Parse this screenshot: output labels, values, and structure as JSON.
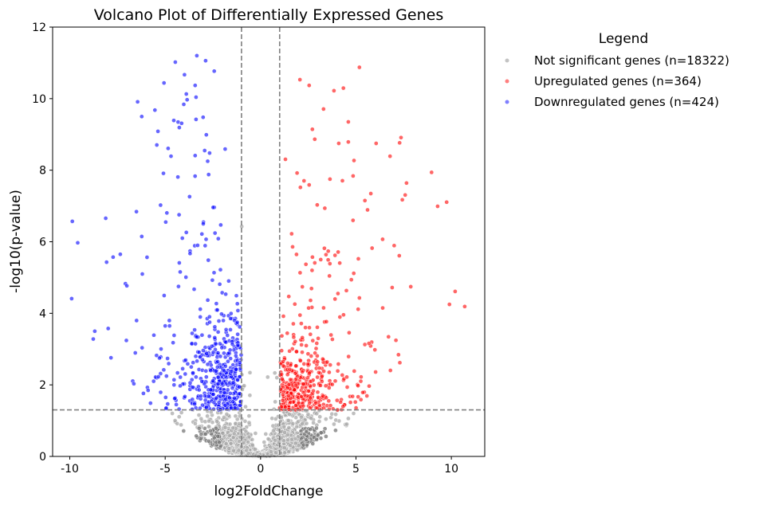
{
  "chart_data": {
    "type": "scatter",
    "title": "Volcano Plot of Differentially Expressed Genes",
    "xlabel": "log2FoldChange",
    "ylabel": "-log10(p-value)",
    "xlim": [
      -10.9,
      11.75
    ],
    "ylim": [
      0,
      12
    ],
    "x_ticks": [
      -10,
      -5,
      0,
      5,
      10
    ],
    "y_ticks": [
      0,
      2,
      4,
      6,
      8,
      10,
      12
    ],
    "grid": false,
    "thresholds": {
      "log2fc": [
        -1,
        1
      ],
      "neg_log10_p": 1.3
    },
    "legend": {
      "title": "Legend",
      "placement": "outside-top-right",
      "entries": [
        {
          "label": "Not significant genes (n=18322)",
          "color": "#a9a9a9"
        },
        {
          "label": "Upregulated genes (n=364)",
          "color": "#ff0000"
        },
        {
          "label": "Downregulated genes (n=424)",
          "color": "#0000ff"
        }
      ]
    },
    "series": [
      {
        "name": "Not significant genes (n=18322)",
        "color": "#a9a9a9",
        "count": 18322
      },
      {
        "name": "Upregulated genes (n=364)",
        "color": "#ff0000",
        "count": 364,
        "points": [
          [
            2.55,
            10.37
          ],
          [
            3.3,
            9.71
          ],
          [
            4.6,
            9.35
          ],
          [
            4.6,
            8.79
          ],
          [
            4.1,
            8.75
          ],
          [
            6.06,
            8.75
          ],
          [
            4.85,
            7.84
          ],
          [
            7.65,
            7.64
          ],
          [
            2.09,
            7.52
          ],
          [
            2.55,
            7.59
          ],
          [
            3.64,
            7.75
          ],
          [
            5.47,
            7.15
          ],
          [
            2.97,
            7.03
          ],
          [
            9.28,
            6.99
          ],
          [
            2.72,
            5.57
          ],
          [
            7.27,
            5.61
          ],
          [
            10.2,
            4.61
          ],
          [
            10.7,
            4.19
          ],
          [
            4.76,
            4.94
          ],
          [
            5.18,
            4.43
          ],
          [
            5.68,
            3.16
          ],
          [
            2.84,
            5.41
          ],
          [
            6.4,
            4.15
          ],
          [
            6.9,
            4.72
          ],
          [
            9.9,
            4.25
          ],
          [
            3.9,
            4.4
          ],
          [
            2.7,
            5.2
          ]
        ]
      },
      {
        "name": "Downregulated genes (n=424)",
        "color": "#0000ff",
        "count": 424,
        "points": [
          [
            -9.9,
            4.41
          ],
          [
            -8.69,
            3.5
          ],
          [
            -7.35,
            5.65
          ],
          [
            -6.64,
            2.03
          ],
          [
            -6.14,
            1.76
          ],
          [
            -5.77,
            1.49
          ],
          [
            -5.06,
            10.44
          ],
          [
            -4.97,
            6.55
          ],
          [
            -4.47,
            11.02
          ],
          [
            -4.55,
            9.39
          ],
          [
            -4.14,
            9.31
          ],
          [
            -3.89,
            10.13
          ],
          [
            -3.85,
            9.97
          ],
          [
            -3.43,
            10.37
          ],
          [
            -3.38,
            10.04
          ],
          [
            -3.34,
            11.2
          ],
          [
            -2.88,
            11.06
          ],
          [
            -3.38,
            9.42
          ],
          [
            -3.01,
            9.48
          ],
          [
            -2.93,
            8.55
          ],
          [
            -2.67,
            8.48
          ],
          [
            -2.72,
            7.88
          ],
          [
            -3.72,
            7.26
          ],
          [
            -4.26,
            5.41
          ],
          [
            -3.89,
            6.26
          ],
          [
            -4.1,
            6.1
          ],
          [
            -3.3,
            5.9
          ],
          [
            -4.3,
            4.75
          ],
          [
            -5.0,
            3.65
          ],
          [
            -5.3,
            2.75
          ],
          [
            -3.0,
            6.5
          ]
        ]
      }
    ]
  }
}
